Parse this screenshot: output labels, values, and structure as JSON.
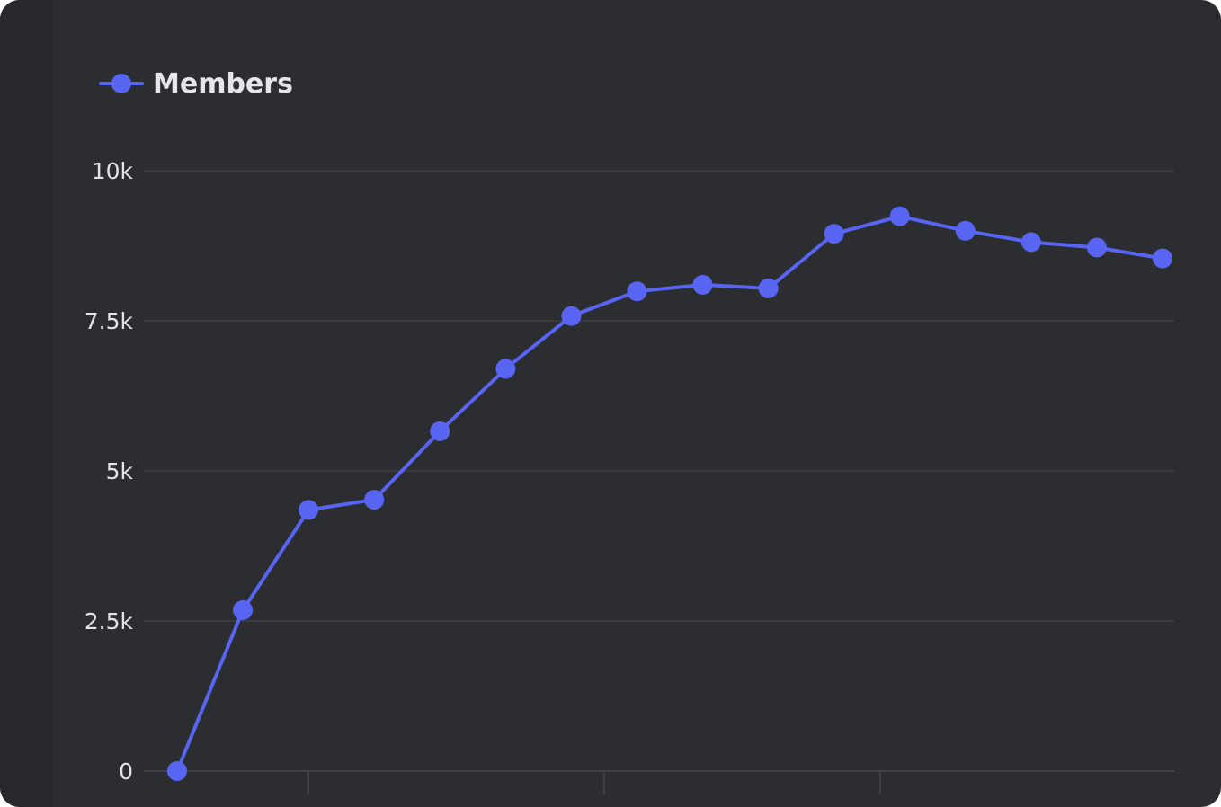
{
  "chart_data": {
    "type": "line",
    "x": [
      1,
      2,
      3,
      4,
      5,
      6,
      7,
      8,
      9,
      10,
      11,
      12,
      13,
      14,
      15,
      16
    ],
    "series": [
      {
        "name": "Members",
        "values": [
          0,
          2680,
          4350,
          4520,
          5660,
          6700,
          7580,
          7990,
          8100,
          8040,
          8950,
          9240,
          9000,
          8810,
          8720,
          8540
        ]
      }
    ],
    "ylim": [
      0,
      10000
    ],
    "y_ticks": [
      {
        "value": 0,
        "label": "0"
      },
      {
        "value": 2500,
        "label": "2.5k"
      },
      {
        "value": 5000,
        "label": "5k"
      },
      {
        "value": 7500,
        "label": "7.5k"
      },
      {
        "value": 10000,
        "label": "10k"
      }
    ],
    "x_ticks_unlabeled_after": [
      3,
      7.5,
      11.7
    ],
    "grid": true,
    "legend_position": "top-left",
    "title": "",
    "xlabel": "",
    "ylabel": ""
  },
  "colors": {
    "background": "#2b2d31",
    "line": "#5865f2",
    "grid": "#3c3e44",
    "text": "#e6e6e9"
  }
}
